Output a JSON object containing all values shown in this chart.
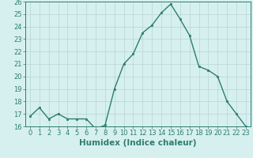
{
  "x": [
    0,
    1,
    2,
    3,
    4,
    5,
    6,
    7,
    8,
    9,
    10,
    11,
    12,
    13,
    14,
    15,
    16,
    17,
    18,
    19,
    20,
    21,
    22,
    23
  ],
  "y": [
    16.8,
    17.5,
    16.6,
    17.0,
    16.6,
    16.6,
    16.6,
    15.8,
    16.1,
    19.0,
    21.0,
    21.8,
    23.5,
    24.1,
    25.1,
    25.8,
    24.6,
    23.3,
    20.8,
    20.5,
    20.0,
    18.0,
    17.0,
    16.0
  ],
  "line_color": "#2e7d6e",
  "marker": "s",
  "marker_size": 2.0,
  "bg_color": "#d6f0ef",
  "grid_color": "#b8d4d4",
  "xlabel": "Humidex (Indice chaleur)",
  "ylim": [
    16,
    26
  ],
  "xlim": [
    -0.5,
    23.5
  ],
  "yticks": [
    16,
    17,
    18,
    19,
    20,
    21,
    22,
    23,
    24,
    25,
    26
  ],
  "xticks": [
    0,
    1,
    2,
    3,
    4,
    5,
    6,
    7,
    8,
    9,
    10,
    11,
    12,
    13,
    14,
    15,
    16,
    17,
    18,
    19,
    20,
    21,
    22,
    23
  ],
  "xlabel_fontsize": 7.5,
  "tick_fontsize": 6.0,
  "line_width": 1.0
}
